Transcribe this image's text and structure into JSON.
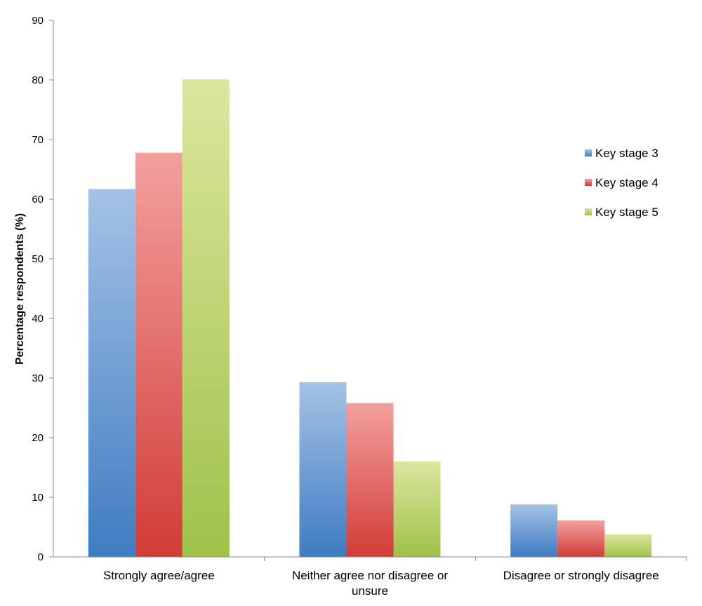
{
  "chart_data": {
    "type": "bar",
    "title": "",
    "xlabel": "",
    "ylabel": "Percentage respondents (%)",
    "ylim": [
      0,
      90
    ],
    "yticks": [
      0,
      10,
      20,
      30,
      40,
      50,
      60,
      70,
      80,
      90
    ],
    "grid": false,
    "legend_position": "right",
    "categories": [
      [
        "Strongly agree/agree"
      ],
      [
        "Neither agree nor disagree or",
        "unsure"
      ],
      [
        "Disagree or strongly disagree"
      ]
    ],
    "series": [
      {
        "name": "Key stage 3",
        "color_top": "#a4c2e6",
        "color_bottom": "#3f7cc2",
        "values": [
          61.7,
          29.3,
          8.8
        ]
      },
      {
        "name": "Key stage 4",
        "color_top": "#f3a09e",
        "color_bottom": "#d13c37",
        "values": [
          67.8,
          25.8,
          6.1
        ]
      },
      {
        "name": "Key stage 5",
        "color_top": "#dce69e",
        "color_bottom": "#9ec24a",
        "values": [
          80.1,
          16.0,
          3.8
        ]
      }
    ]
  }
}
